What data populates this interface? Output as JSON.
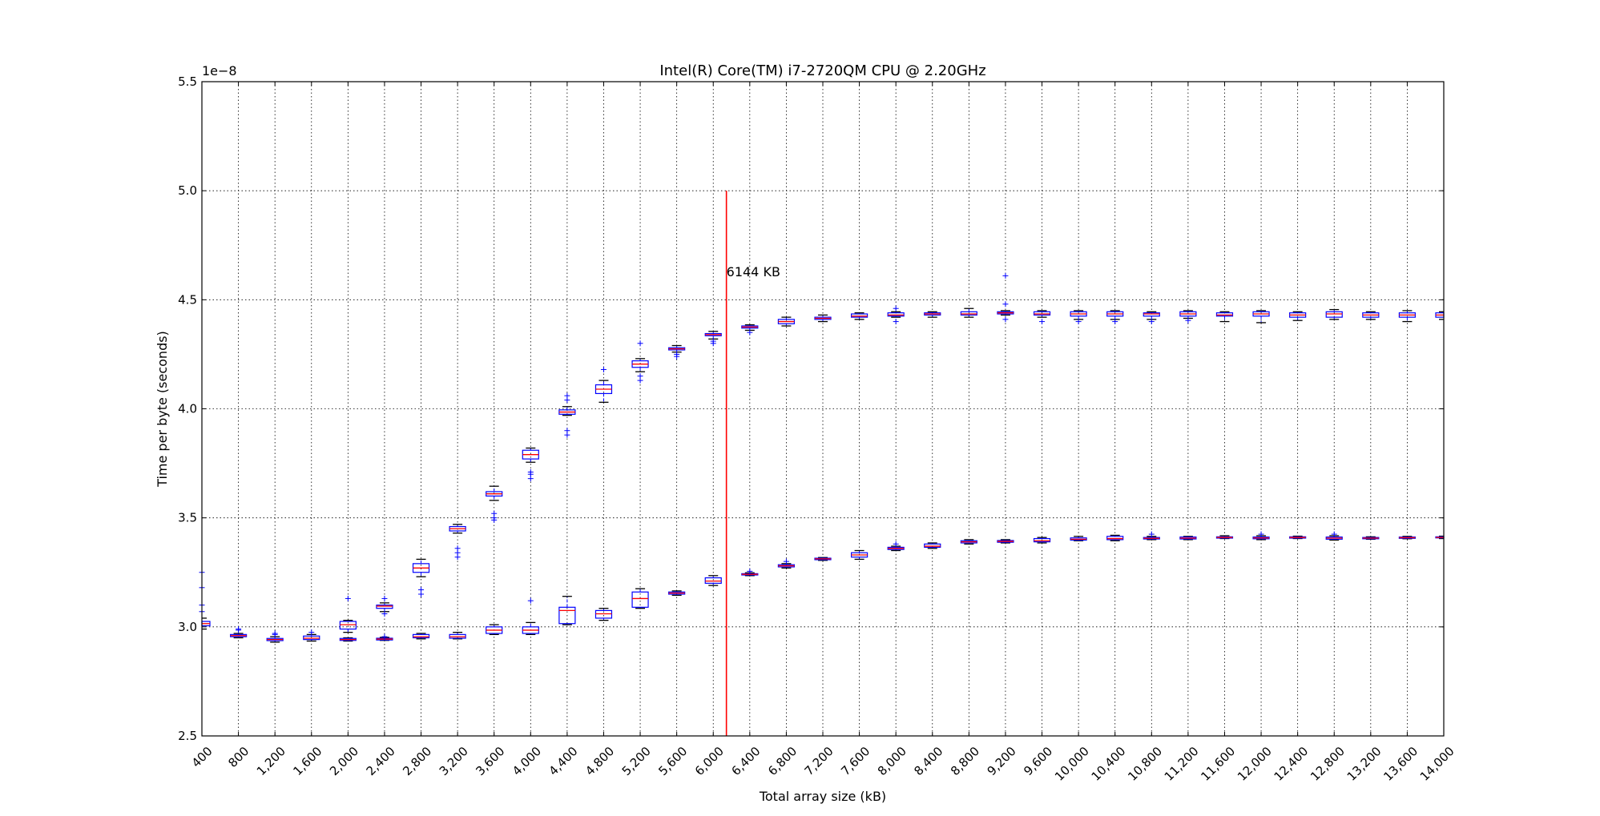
{
  "chart_data": {
    "type": "box",
    "title": "Intel(R) Core(TM) i7-2720QM CPU @ 2.20GHz",
    "xlabel": "Total array size (kB)",
    "ylabel": "Time per byte (seconds)",
    "y_offset_label": "1e−8",
    "y_scale": 1e-08,
    "xlim": [
      400,
      14000
    ],
    "ylim": [
      2.5,
      5.5
    ],
    "x_ticks": [
      400,
      800,
      1200,
      1600,
      2000,
      2400,
      2800,
      3200,
      3600,
      4000,
      4400,
      4800,
      5200,
      5600,
      6000,
      6400,
      6800,
      7200,
      7600,
      8000,
      8400,
      8800,
      9200,
      9600,
      10000,
      10400,
      10800,
      11200,
      11600,
      12000,
      12400,
      12800,
      13200,
      13600,
      14000
    ],
    "x_tick_labels": [
      "400",
      "800",
      "1,200",
      "1,600",
      "2,000",
      "2,400",
      "2,800",
      "3,200",
      "3,600",
      "4,000",
      "4,400",
      "4,800",
      "5,200",
      "5,600",
      "6,000",
      "6,400",
      "6,800",
      "7,200",
      "7,600",
      "8,000",
      "8,400",
      "8,800",
      "9,200",
      "9,600",
      "10,000",
      "10,400",
      "10,800",
      "11,200",
      "11,600",
      "12,000",
      "12,400",
      "12,800",
      "13,200",
      "13,600",
      "14,000"
    ],
    "y_ticks": [
      2.5,
      3.0,
      3.5,
      4.0,
      4.5,
      5.0,
      5.5
    ],
    "y_tick_labels": [
      "2.5",
      "3.0",
      "3.5",
      "4.0",
      "4.5",
      "5.0",
      "5.5"
    ],
    "grid": true,
    "box_color": "#0000ff",
    "median_color": "#ff0000",
    "vline": {
      "x": 6144,
      "y_range": [
        2.5,
        5.0
      ],
      "color": "#ff0000"
    },
    "annotation": {
      "text": "6144 KB",
      "x": 6144,
      "y": 4.63
    },
    "series": [
      {
        "boxes": [
          {
            "x": 400,
            "whislo": 2.99,
            "q1": 3.005,
            "med": 3.015,
            "q3": 3.025,
            "whishi": 3.04,
            "fliers": [
              3.07,
              3.1,
              3.18,
              3.25
            ]
          },
          {
            "x": 800,
            "whislo": 2.95,
            "q1": 2.955,
            "med": 2.96,
            "q3": 2.965,
            "whishi": 2.97,
            "fliers": [
              2.985,
              2.99
            ]
          },
          {
            "x": 1200,
            "whislo": 2.93,
            "q1": 2.937,
            "med": 2.942,
            "q3": 2.947,
            "whishi": 2.955,
            "fliers": [
              2.965,
              2.97
            ]
          },
          {
            "x": 1600,
            "whislo": 2.935,
            "q1": 2.942,
            "med": 2.948,
            "q3": 2.958,
            "whishi": 2.965,
            "fliers": [
              2.975
            ]
          },
          {
            "x": 2000,
            "whislo": 2.975,
            "q1": 2.99,
            "med": 3.01,
            "q3": 3.025,
            "whishi": 3.03,
            "fliers": [
              3.13
            ]
          },
          {
            "x": 2400,
            "whislo": 3.07,
            "q1": 3.085,
            "med": 3.095,
            "q3": 3.1,
            "whishi": 3.11,
            "fliers": [
              3.06,
              3.13
            ]
          },
          {
            "x": 2800,
            "whislo": 3.23,
            "q1": 3.25,
            "med": 3.27,
            "q3": 3.29,
            "whishi": 3.31,
            "fliers": [
              3.15,
              3.17
            ]
          },
          {
            "x": 3200,
            "whislo": 3.43,
            "q1": 3.44,
            "med": 3.45,
            "q3": 3.46,
            "whishi": 3.47,
            "fliers": [
              3.32,
              3.34,
              3.36
            ]
          },
          {
            "x": 3600,
            "whislo": 3.58,
            "q1": 3.6,
            "med": 3.61,
            "q3": 3.62,
            "whishi": 3.645,
            "fliers": [
              3.49,
              3.5,
              3.52
            ]
          },
          {
            "x": 4000,
            "whislo": 3.755,
            "q1": 3.77,
            "med": 3.79,
            "q3": 3.81,
            "whishi": 3.82,
            "fliers": [
              3.68,
              3.7,
              3.71
            ]
          },
          {
            "x": 4400,
            "whislo": 3.97,
            "q1": 3.975,
            "med": 3.985,
            "q3": 3.995,
            "whishi": 4.01,
            "fliers": [
              3.88,
              3.9,
              4.04,
              4.06
            ]
          },
          {
            "x": 4800,
            "whislo": 4.03,
            "q1": 4.07,
            "med": 4.09,
            "q3": 4.11,
            "whishi": 4.13,
            "fliers": [
              4.18
            ]
          },
          {
            "x": 5200,
            "whislo": 4.17,
            "q1": 4.19,
            "med": 4.205,
            "q3": 4.22,
            "whishi": 4.23,
            "fliers": [
              4.13,
              4.15,
              4.3
            ]
          },
          {
            "x": 5600,
            "whislo": 4.26,
            "q1": 4.27,
            "med": 4.275,
            "q3": 4.28,
            "whishi": 4.29,
            "fliers": [
              4.24,
              4.25
            ]
          },
          {
            "x": 6000,
            "whislo": 4.32,
            "q1": 4.335,
            "med": 4.34,
            "q3": 4.345,
            "whishi": 4.355,
            "fliers": [
              4.3,
              4.31
            ]
          },
          {
            "x": 6400,
            "whislo": 4.36,
            "q1": 4.37,
            "med": 4.375,
            "q3": 4.38,
            "whishi": 4.385,
            "fliers": [
              4.35
            ]
          },
          {
            "x": 6800,
            "whislo": 4.38,
            "q1": 4.39,
            "med": 4.4,
            "q3": 4.41,
            "whishi": 4.42,
            "fliers": []
          },
          {
            "x": 7200,
            "whislo": 4.4,
            "q1": 4.41,
            "med": 4.415,
            "q3": 4.42,
            "whishi": 4.43,
            "fliers": []
          },
          {
            "x": 7600,
            "whislo": 4.41,
            "q1": 4.42,
            "med": 4.425,
            "q3": 4.435,
            "whishi": 4.44,
            "fliers": []
          },
          {
            "x": 8000,
            "whislo": 4.42,
            "q1": 4.425,
            "med": 4.43,
            "q3": 4.44,
            "whishi": 4.445,
            "fliers": [
              4.4,
              4.46
            ]
          },
          {
            "x": 8400,
            "whislo": 4.42,
            "q1": 4.43,
            "med": 4.435,
            "q3": 4.44,
            "whishi": 4.445,
            "fliers": []
          },
          {
            "x": 8800,
            "whislo": 4.42,
            "q1": 4.43,
            "med": 4.435,
            "q3": 4.445,
            "whishi": 4.46,
            "fliers": []
          },
          {
            "x": 9200,
            "whislo": 4.43,
            "q1": 4.435,
            "med": 4.44,
            "q3": 4.445,
            "whishi": 4.45,
            "fliers": [
              4.41,
              4.48,
              4.61
            ]
          },
          {
            "x": 9600,
            "whislo": 4.42,
            "q1": 4.43,
            "med": 4.435,
            "q3": 4.445,
            "whishi": 4.45,
            "fliers": [
              4.4
            ]
          },
          {
            "x": 10000,
            "whislo": 4.41,
            "q1": 4.425,
            "med": 4.435,
            "q3": 4.445,
            "whishi": 4.45,
            "fliers": [
              4.4
            ]
          },
          {
            "x": 10400,
            "whislo": 4.41,
            "q1": 4.425,
            "med": 4.435,
            "q3": 4.445,
            "whishi": 4.45,
            "fliers": [
              4.4
            ]
          },
          {
            "x": 10800,
            "whislo": 4.41,
            "q1": 4.425,
            "med": 4.435,
            "q3": 4.44,
            "whishi": 4.445,
            "fliers": [
              4.4
            ]
          },
          {
            "x": 11200,
            "whislo": 4.415,
            "q1": 4.425,
            "med": 4.435,
            "q3": 4.445,
            "whishi": 4.45,
            "fliers": [
              4.405
            ]
          },
          {
            "x": 11600,
            "whislo": 4.4,
            "q1": 4.425,
            "med": 4.43,
            "q3": 4.44,
            "whishi": 4.445,
            "fliers": []
          },
          {
            "x": 12000,
            "whislo": 4.395,
            "q1": 4.425,
            "med": 4.435,
            "q3": 4.445,
            "whishi": 4.45,
            "fliers": []
          },
          {
            "x": 12400,
            "whislo": 4.405,
            "q1": 4.42,
            "med": 4.43,
            "q3": 4.44,
            "whishi": 4.445,
            "fliers": []
          },
          {
            "x": 12800,
            "whislo": 4.41,
            "q1": 4.42,
            "med": 4.435,
            "q3": 4.445,
            "whishi": 4.455,
            "fliers": []
          },
          {
            "x": 13200,
            "whislo": 4.41,
            "q1": 4.42,
            "med": 4.43,
            "q3": 4.44,
            "whishi": 4.445,
            "fliers": []
          },
          {
            "x": 13600,
            "whislo": 4.4,
            "q1": 4.42,
            "med": 4.43,
            "q3": 4.44,
            "whishi": 4.45,
            "fliers": []
          },
          {
            "x": 14000,
            "whislo": 4.41,
            "q1": 4.42,
            "med": 4.43,
            "q3": 4.44,
            "whishi": 4.445,
            "fliers": []
          }
        ]
      },
      {
        "boxes": [
          {
            "x": 2000,
            "whislo": 2.935,
            "q1": 2.938,
            "med": 2.942,
            "q3": 2.947,
            "whishi": 2.95,
            "fliers": []
          },
          {
            "x": 2400,
            "whislo": 2.938,
            "q1": 2.94,
            "med": 2.944,
            "q3": 2.948,
            "whishi": 2.952,
            "fliers": [
              2.955
            ]
          },
          {
            "x": 2800,
            "whislo": 2.945,
            "q1": 2.95,
            "med": 2.955,
            "q3": 2.965,
            "whishi": 2.97,
            "fliers": []
          },
          {
            "x": 3200,
            "whislo": 2.945,
            "q1": 2.948,
            "med": 2.955,
            "q3": 2.965,
            "whishi": 2.975,
            "fliers": []
          },
          {
            "x": 3600,
            "whislo": 2.965,
            "q1": 2.97,
            "med": 2.985,
            "q3": 3.0,
            "whishi": 3.01,
            "fliers": []
          },
          {
            "x": 4000,
            "whislo": 2.965,
            "q1": 2.97,
            "med": 2.985,
            "q3": 3.0,
            "whishi": 3.02,
            "fliers": [
              3.12
            ]
          },
          {
            "x": 4400,
            "whislo": 3.01,
            "q1": 3.015,
            "med": 3.075,
            "q3": 3.09,
            "whishi": 3.14,
            "fliers": []
          },
          {
            "x": 4800,
            "whislo": 3.03,
            "q1": 3.04,
            "med": 3.06,
            "q3": 3.075,
            "whishi": 3.085,
            "fliers": []
          },
          {
            "x": 5200,
            "whislo": 3.085,
            "q1": 3.09,
            "med": 3.13,
            "q3": 3.16,
            "whishi": 3.175,
            "fliers": []
          },
          {
            "x": 5600,
            "whislo": 3.145,
            "q1": 3.15,
            "med": 3.155,
            "q3": 3.16,
            "whishi": 3.165,
            "fliers": []
          },
          {
            "x": 6000,
            "whislo": 3.19,
            "q1": 3.2,
            "med": 3.21,
            "q3": 3.225,
            "whishi": 3.235,
            "fliers": []
          },
          {
            "x": 6400,
            "whislo": 3.235,
            "q1": 3.238,
            "med": 3.241,
            "q3": 3.244,
            "whishi": 3.248,
            "fliers": [
              3.255
            ]
          },
          {
            "x": 6800,
            "whislo": 3.27,
            "q1": 3.275,
            "med": 3.28,
            "q3": 3.285,
            "whishi": 3.29,
            "fliers": [
              3.3
            ]
          },
          {
            "x": 7200,
            "whislo": 3.305,
            "q1": 3.308,
            "med": 3.312,
            "q3": 3.315,
            "whishi": 3.318,
            "fliers": []
          },
          {
            "x": 7600,
            "whislo": 3.31,
            "q1": 3.32,
            "med": 3.33,
            "q3": 3.34,
            "whishi": 3.35,
            "fliers": []
          },
          {
            "x": 8000,
            "whislo": 3.35,
            "q1": 3.355,
            "med": 3.36,
            "q3": 3.365,
            "whishi": 3.37,
            "fliers": [
              3.38
            ]
          },
          {
            "x": 8400,
            "whislo": 3.36,
            "q1": 3.365,
            "med": 3.37,
            "q3": 3.38,
            "whishi": 3.385,
            "fliers": []
          },
          {
            "x": 8800,
            "whislo": 3.38,
            "q1": 3.385,
            "med": 3.39,
            "q3": 3.395,
            "whishi": 3.4,
            "fliers": []
          },
          {
            "x": 9200,
            "whislo": 3.385,
            "q1": 3.388,
            "med": 3.392,
            "q3": 3.396,
            "whishi": 3.4,
            "fliers": []
          },
          {
            "x": 9600,
            "whislo": 3.385,
            "q1": 3.39,
            "med": 3.395,
            "q3": 3.405,
            "whishi": 3.41,
            "fliers": []
          },
          {
            "x": 10000,
            "whislo": 3.395,
            "q1": 3.398,
            "med": 3.402,
            "q3": 3.408,
            "whishi": 3.415,
            "fliers": []
          },
          {
            "x": 10400,
            "whislo": 3.395,
            "q1": 3.4,
            "med": 3.405,
            "q3": 3.415,
            "whishi": 3.42,
            "fliers": []
          },
          {
            "x": 10800,
            "whislo": 3.4,
            "q1": 3.403,
            "med": 3.406,
            "q3": 3.41,
            "whishi": 3.415,
            "fliers": [
              3.425
            ]
          },
          {
            "x": 11200,
            "whislo": 3.4,
            "q1": 3.403,
            "med": 3.407,
            "q3": 3.412,
            "whishi": 3.415,
            "fliers": []
          },
          {
            "x": 11600,
            "whislo": 3.405,
            "q1": 3.407,
            "med": 3.41,
            "q3": 3.413,
            "whishi": 3.418,
            "fliers": []
          },
          {
            "x": 12000,
            "whislo": 3.4,
            "q1": 3.404,
            "med": 3.408,
            "q3": 3.412,
            "whishi": 3.418,
            "fliers": [
              3.425
            ]
          },
          {
            "x": 12400,
            "whislo": 3.405,
            "q1": 3.407,
            "med": 3.41,
            "q3": 3.413,
            "whishi": 3.416,
            "fliers": []
          },
          {
            "x": 12800,
            "whislo": 3.398,
            "q1": 3.402,
            "med": 3.407,
            "q3": 3.412,
            "whishi": 3.418,
            "fliers": [
              3.425
            ]
          },
          {
            "x": 13200,
            "whislo": 3.402,
            "q1": 3.404,
            "med": 3.407,
            "q3": 3.41,
            "whishi": 3.413,
            "fliers": []
          },
          {
            "x": 13600,
            "whislo": 3.404,
            "q1": 3.406,
            "med": 3.409,
            "q3": 3.412,
            "whishi": 3.415,
            "fliers": []
          },
          {
            "x": 14000,
            "whislo": 3.405,
            "q1": 3.408,
            "med": 3.41,
            "q3": 3.413,
            "whishi": 3.416,
            "fliers": []
          }
        ]
      }
    ]
  }
}
